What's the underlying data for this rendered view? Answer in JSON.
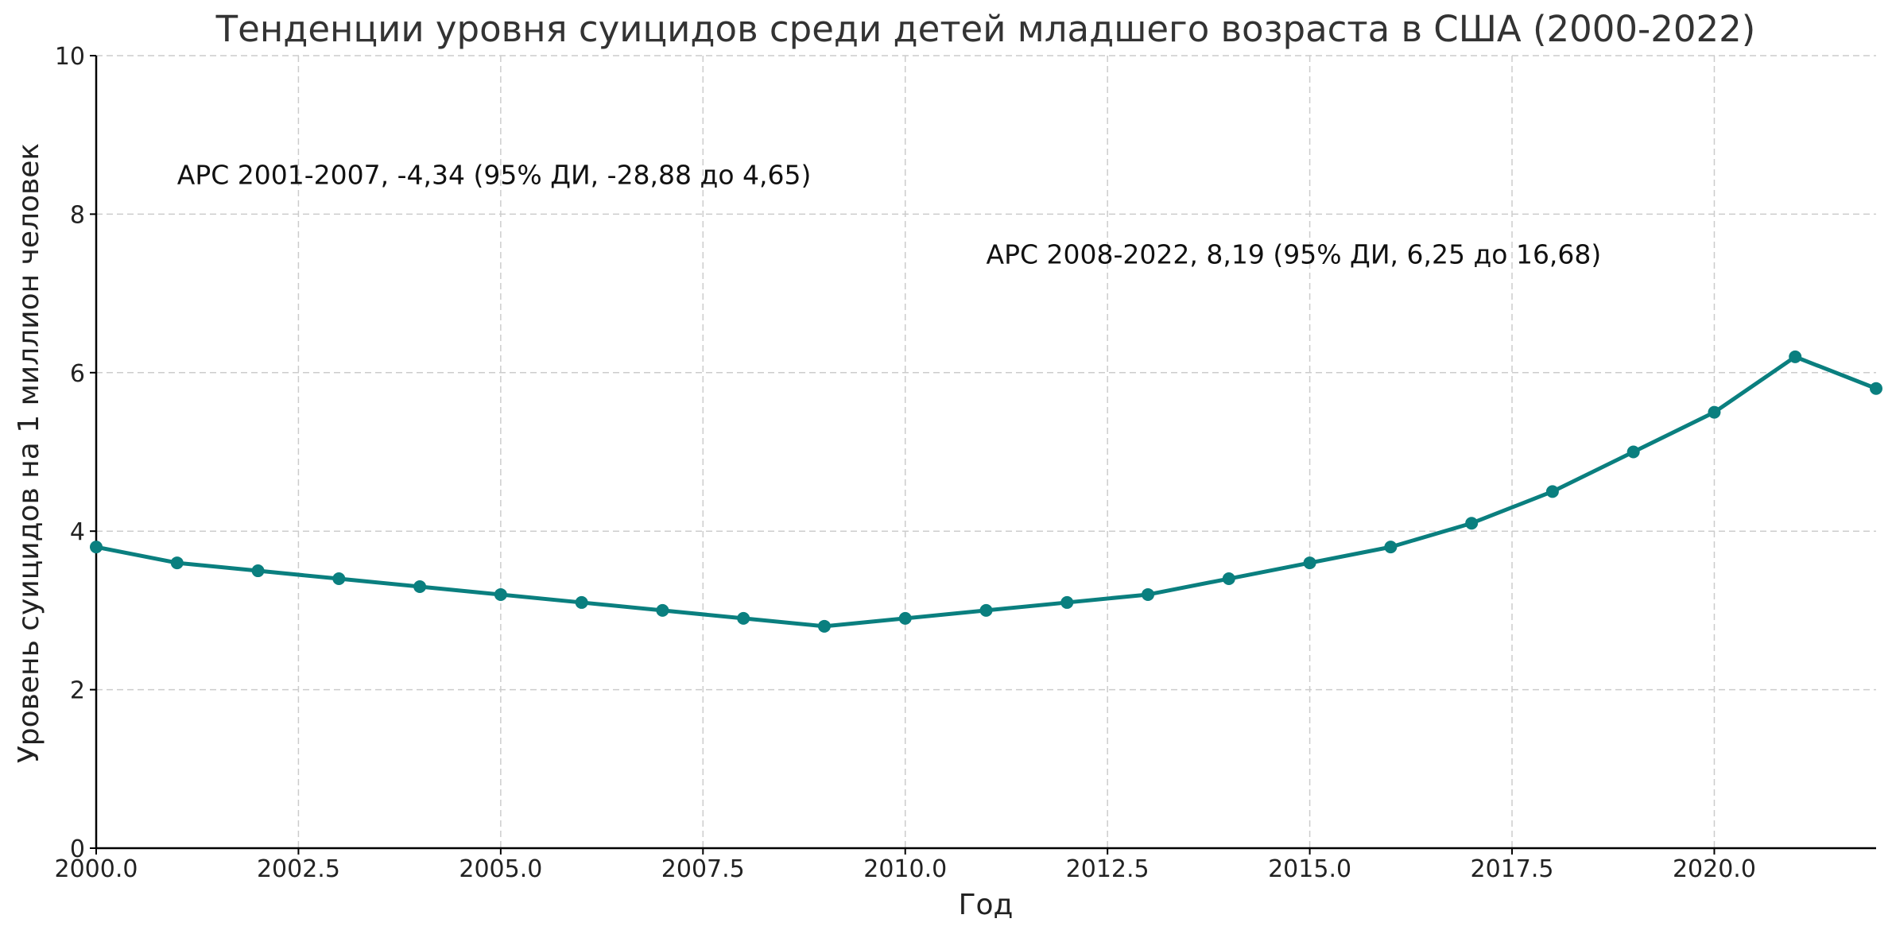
{
  "chart_data": {
    "type": "line",
    "title": "Тенденции уровня суицидов среди детей младшего возраста в США (2000-2022)",
    "xlabel": "Год",
    "ylabel": "Уровень суицидов на 1 миллион человек",
    "xlim": [
      2000,
      2022
    ],
    "ylim": [
      0,
      10
    ],
    "x_ticks": [
      "2000.0",
      "2002.5",
      "2005.0",
      "2007.5",
      "2010.0",
      "2012.5",
      "2015.0",
      "2017.5",
      "2020.0"
    ],
    "x_tick_values": [
      2000,
      2002.5,
      2005,
      2007.5,
      2010,
      2012.5,
      2015,
      2017.5,
      2020
    ],
    "y_ticks": [
      "0",
      "2",
      "4",
      "6",
      "8",
      "10"
    ],
    "y_tick_values": [
      0,
      2,
      4,
      6,
      8,
      10
    ],
    "grid": true,
    "color": "#0a7f7f",
    "series": [
      {
        "x": [
          2000,
          2001,
          2002,
          2003,
          2004,
          2005,
          2006,
          2007,
          2008,
          2009,
          2010,
          2011,
          2012,
          2013,
          2014,
          2015,
          2016,
          2017,
          2018,
          2019,
          2020,
          2021,
          2022
        ],
        "values": [
          3.8,
          3.6,
          3.5,
          3.4,
          3.3,
          3.2,
          3.1,
          3.0,
          2.9,
          2.8,
          2.9,
          3.0,
          3.1,
          3.2,
          3.4,
          3.6,
          3.8,
          4.1,
          4.5,
          5.0,
          5.5,
          6.2,
          5.8
        ]
      }
    ],
    "annotations": [
      {
        "text": "APC 2001-2007, -4,34 (95% ДИ, -28,88 до 4,65)",
        "x": 2001,
        "y": 8.5
      },
      {
        "text": "APC 2008-2022, 8,19 (95% ДИ, 6,25 до 16,68)",
        "x": 2011,
        "y": 7.5
      }
    ]
  }
}
